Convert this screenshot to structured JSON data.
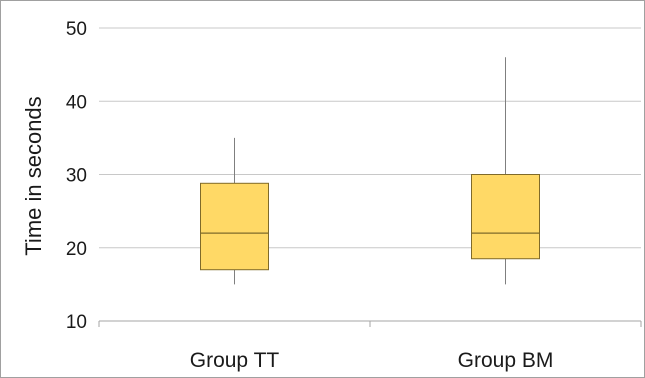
{
  "chart_data": {
    "type": "box",
    "ylabel": "Time in seconds",
    "xlabel": "",
    "ylim": [
      10,
      50
    ],
    "yticks": [
      10,
      20,
      30,
      40,
      50
    ],
    "grid": true,
    "categories": [
      "Group TT",
      "Group BM"
    ],
    "boxes": [
      {
        "category": "Group TT",
        "min": 15,
        "q1": 17,
        "median": 22,
        "q3": 28.8,
        "max": 35
      },
      {
        "category": "Group BM",
        "min": 15,
        "q1": 18.5,
        "median": 22,
        "q3": 30,
        "max": 46
      }
    ]
  },
  "colors": {
    "box_fill": "#ffd966",
    "box_stroke": "#7f6a2a",
    "whisker": "#7f7f7f",
    "grid": "#c8c8c8",
    "axis": "#a6a6a6"
  }
}
